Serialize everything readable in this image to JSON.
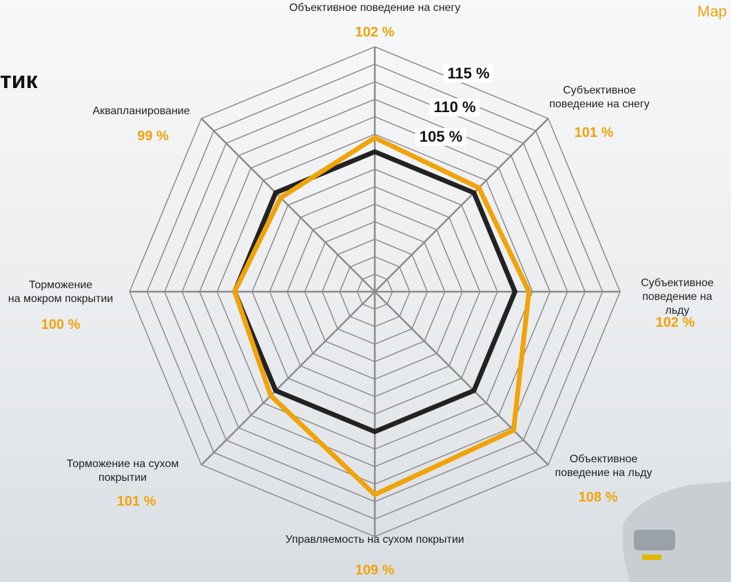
{
  "title_fragment": "тик",
  "header_fragment": "Мар",
  "chart_data": {
    "type": "radar",
    "categories": [
      "Объективное поведение на снегу",
      "Субъективное\nповедение на снегу",
      "Субъективное\nповедение на льду",
      "Объективное\nповедение на льду",
      "Управляемость на сухом покрытии",
      "Торможение на сухом\nпокрытии",
      "Торможение\nна мокром покрытии",
      "Аквапланирование"
    ],
    "series": [
      {
        "color": "#222222",
        "values": [
          100,
          100,
          100,
          100,
          100,
          100,
          100,
          100
        ]
      },
      {
        "color": "#f0a30a",
        "values": [
          102,
          101,
          102,
          108,
          109,
          101,
          100,
          99
        ],
        "value_labels": [
          "102 %",
          "101 %",
          "102 %",
          "108 %",
          "109 %",
          "101 %",
          "100 %",
          "99 %"
        ]
      }
    ],
    "rlim": [
      80,
      115
    ],
    "rticks": [
      {
        "value": 105,
        "label": "105 %"
      },
      {
        "value": 110,
        "label": "110 %"
      },
      {
        "value": 115,
        "label": "115 %"
      }
    ],
    "grid_step": 2.5,
    "grid": true
  }
}
